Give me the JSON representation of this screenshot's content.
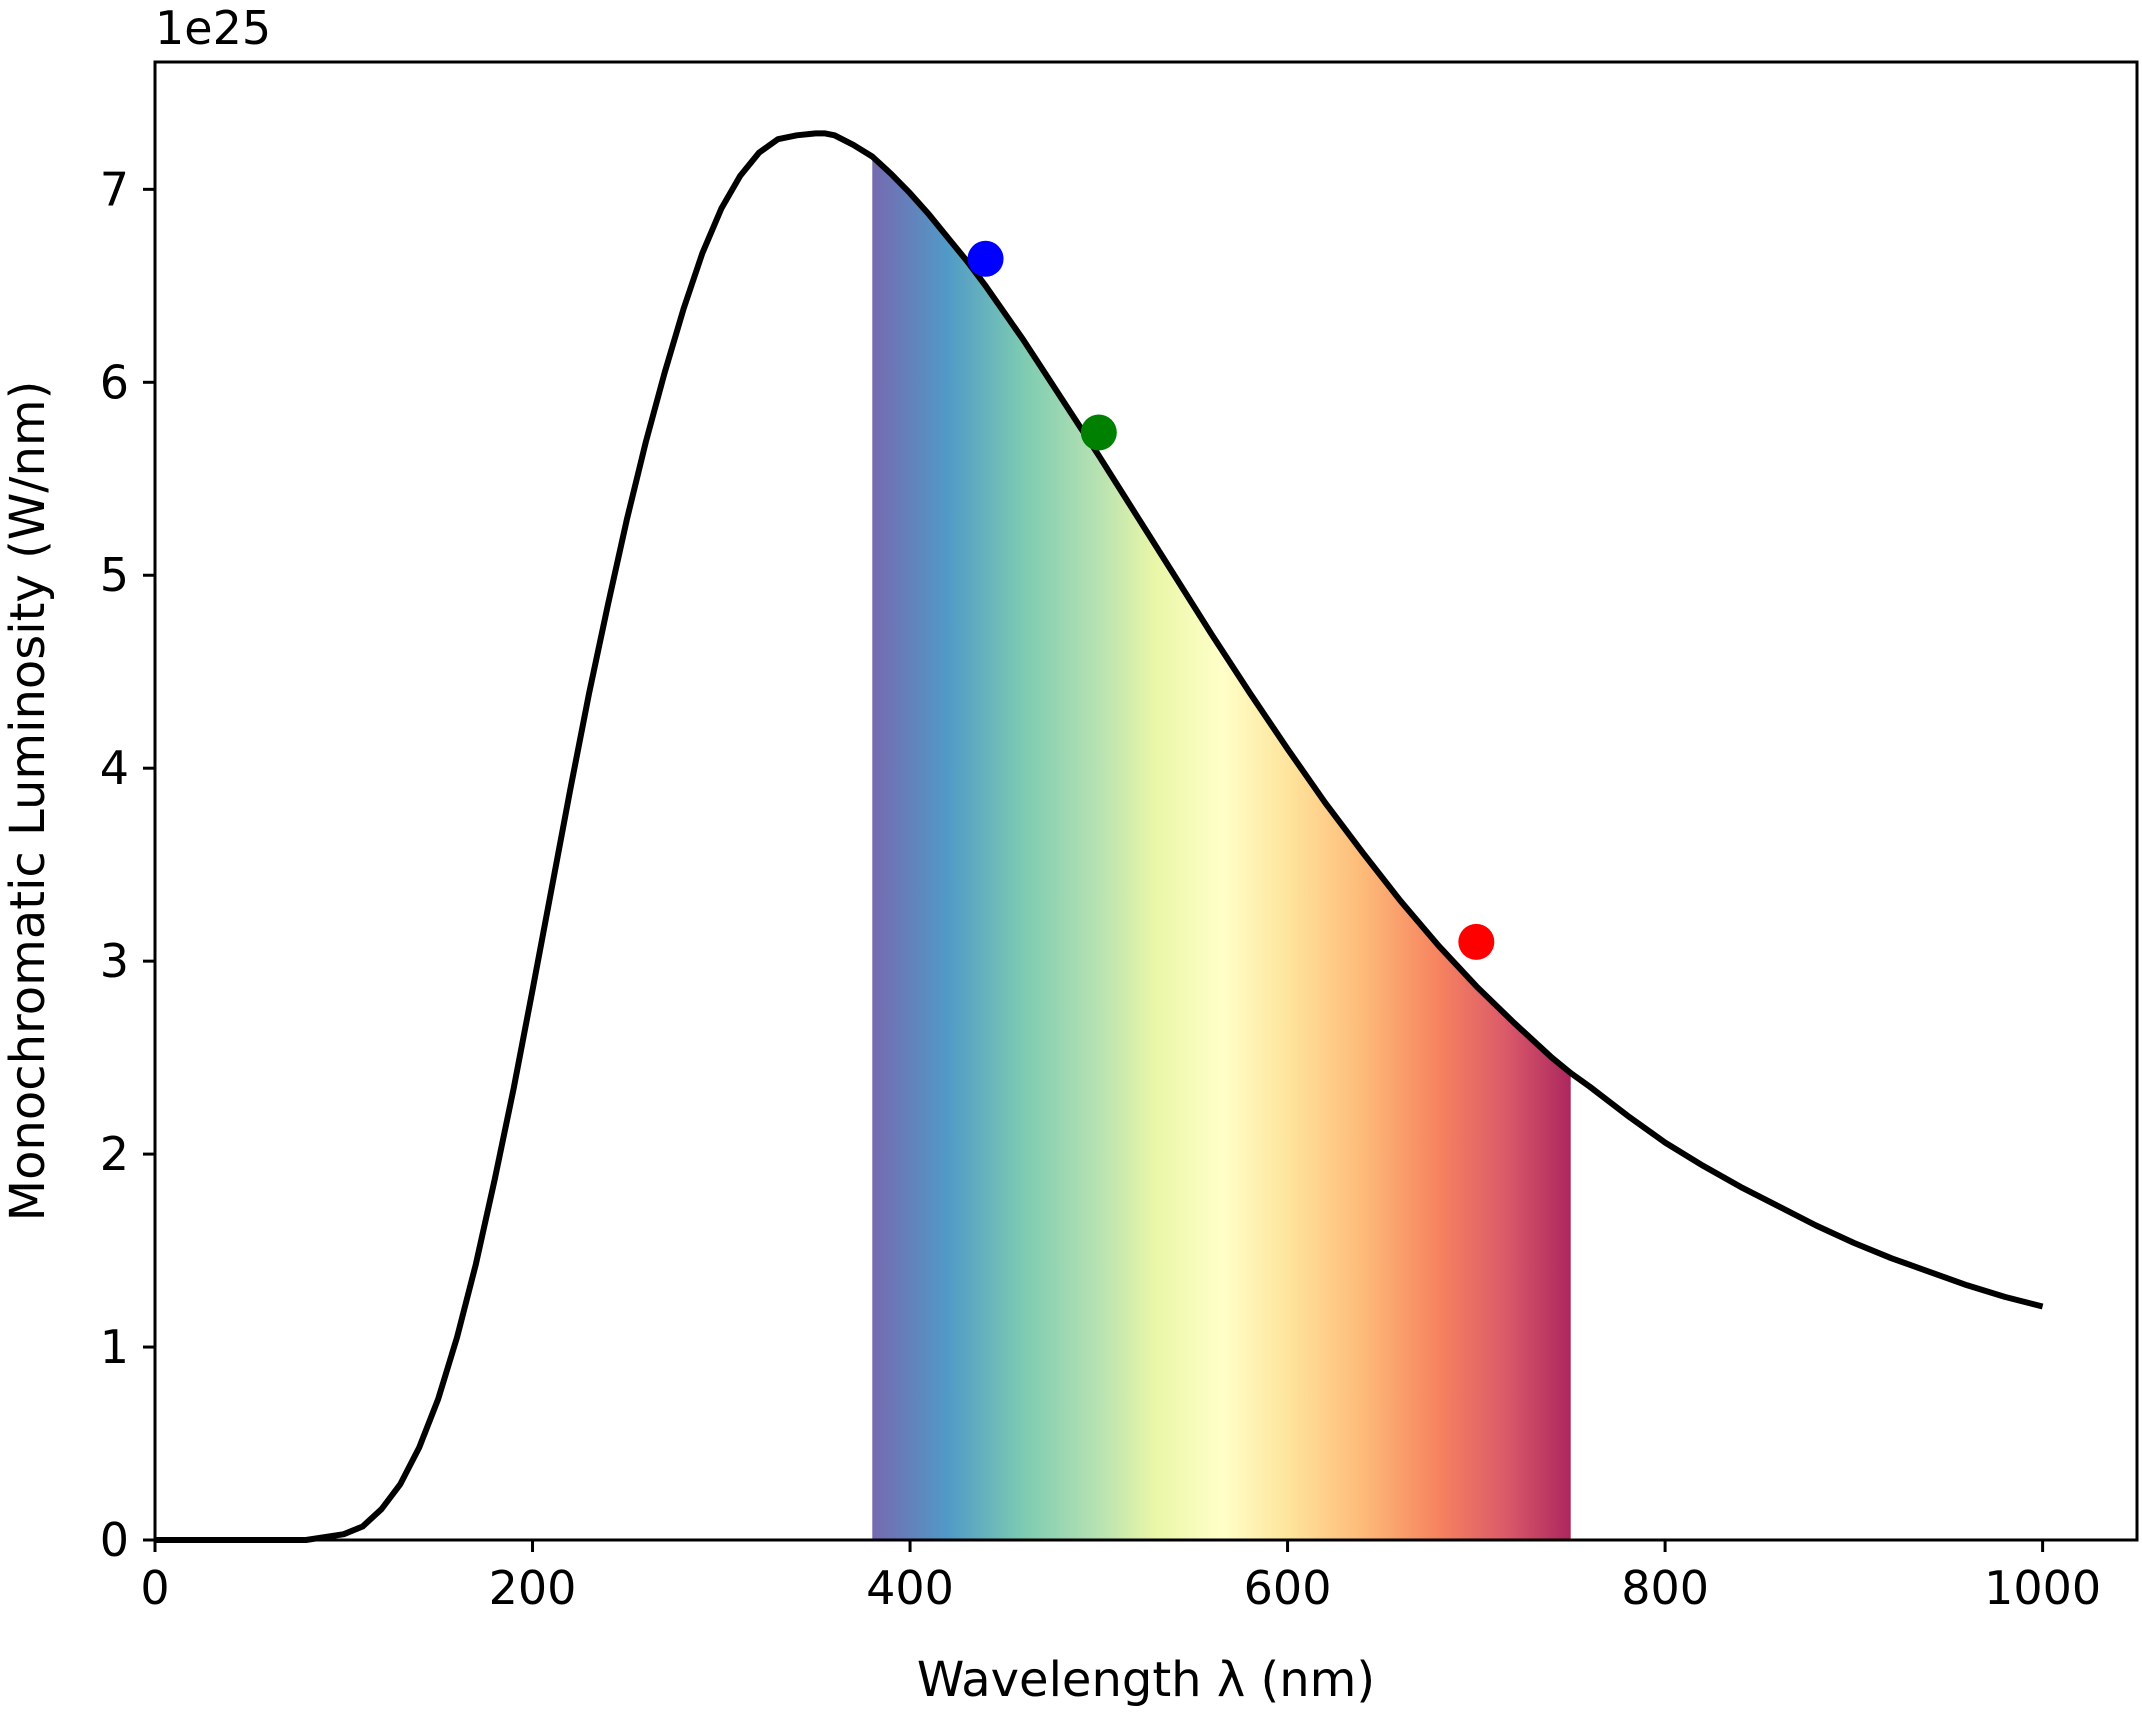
{
  "chart_data": {
    "type": "line",
    "title": "",
    "xlabel": "Wavelength λ (nm)",
    "ylabel": "Monochromatic Luminosity (W/nm)",
    "y_offset_label": "1e25",
    "y_scale_factor": 1e+25,
    "xlim": [
      0,
      1050
    ],
    "ylim": [
      0,
      7.66
    ],
    "x_ticks": [
      0,
      200,
      400,
      600,
      800,
      1000
    ],
    "y_ticks": [
      0,
      1,
      2,
      3,
      4,
      5,
      6,
      7
    ],
    "grid": false,
    "legend": "none",
    "series": [
      {
        "color": "#000000",
        "x": [
          0,
          50,
          80,
          100,
          110,
          120,
          130,
          140,
          150,
          160,
          170,
          180,
          190,
          200,
          210,
          220,
          230,
          240,
          250,
          260,
          270,
          280,
          290,
          300,
          310,
          320,
          330,
          340,
          350,
          355,
          360,
          370,
          380,
          390,
          400,
          410,
          420,
          430,
          440,
          450,
          460,
          470,
          480,
          490,
          500,
          520,
          540,
          560,
          580,
          600,
          620,
          640,
          660,
          680,
          700,
          720,
          740,
          750,
          760,
          780,
          800,
          820,
          840,
          860,
          880,
          900,
          920,
          940,
          960,
          980,
          1000
        ],
        "values": [
          0.0,
          0.0,
          0.0,
          0.03,
          0.07,
          0.16,
          0.29,
          0.48,
          0.73,
          1.05,
          1.43,
          1.87,
          2.34,
          2.85,
          3.37,
          3.89,
          4.39,
          4.85,
          5.29,
          5.69,
          6.05,
          6.38,
          6.67,
          6.9,
          7.07,
          7.19,
          7.26,
          7.28,
          7.29,
          7.29,
          7.28,
          7.23,
          7.17,
          7.08,
          6.98,
          6.87,
          6.75,
          6.63,
          6.5,
          6.36,
          6.22,
          6.07,
          5.92,
          5.77,
          5.62,
          5.31,
          5.0,
          4.69,
          4.39,
          4.1,
          3.82,
          3.56,
          3.31,
          3.08,
          2.87,
          2.68,
          2.5,
          2.42,
          2.35,
          2.2,
          2.06,
          1.94,
          1.83,
          1.73,
          1.63,
          1.54,
          1.46,
          1.39,
          1.32,
          1.26,
          1.21
        ]
      }
    ],
    "markers": [
      {
        "x": 440,
        "y": 6.64,
        "color": "#0000ff"
      },
      {
        "x": 500,
        "y": 5.74,
        "color": "#008000"
      },
      {
        "x": 700,
        "y": 3.1,
        "color": "#ff0000"
      }
    ],
    "visible_band": {
      "x_start": 380,
      "x_end": 750,
      "colormap": "Spectral_r",
      "alpha": 0.85,
      "stops": [
        {
          "x": 380,
          "color": "#5e4fa2"
        },
        {
          "x": 420,
          "color": "#3288bd"
        },
        {
          "x": 460,
          "color": "#66c2a5"
        },
        {
          "x": 500,
          "color": "#abdda4"
        },
        {
          "x": 530,
          "color": "#e6f598"
        },
        {
          "x": 565,
          "color": "#ffffbf"
        },
        {
          "x": 600,
          "color": "#fee08b"
        },
        {
          "x": 640,
          "color": "#fdae61"
        },
        {
          "x": 680,
          "color": "#f46d43"
        },
        {
          "x": 715,
          "color": "#d53e4f"
        },
        {
          "x": 750,
          "color": "#9e0142"
        }
      ]
    }
  }
}
